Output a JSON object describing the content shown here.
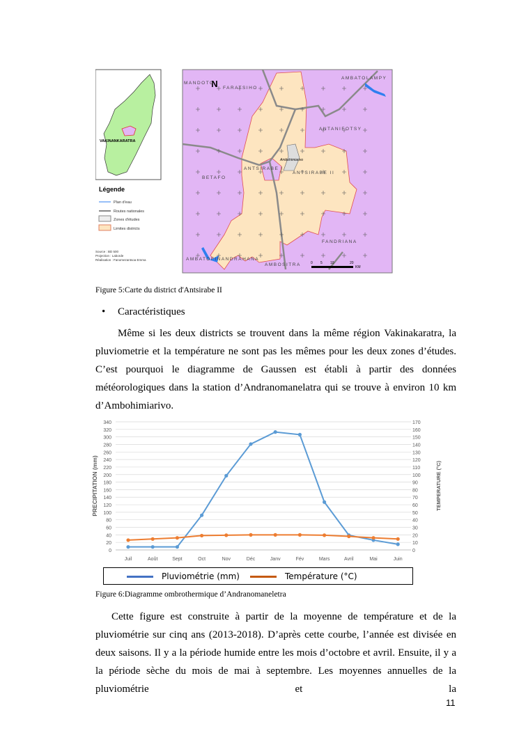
{
  "map": {
    "legend_title": "Légende",
    "legend_items": [
      "Plan d'eau",
      "Routes nationales",
      "Zones d'études",
      "Limites districts"
    ],
    "source_lines": [
      "Source : BD 500",
      "Projection : Laborde",
      "Réalisation : Fanomezantsoa Emma"
    ],
    "region_label": "VAKINANKARATRA",
    "districts": [
      "MANDOTO",
      "FARATSIHO",
      "AMBATOLAMPY",
      "ANTANIFOTSY",
      "BETAFO",
      "ANTSIRABE I",
      "ANTSIRABE II",
      "FANDRIANA",
      "AMBATOFINANDRAHANA",
      "AMBOSITRA"
    ],
    "commune_label": "Ambohimiarivo",
    "north_label": "N",
    "scale_labels": [
      "0",
      "5",
      "10",
      "20",
      "KM"
    ],
    "colors": {
      "outside": "#e2b6f5",
      "district": "#fde5c0",
      "madagascar": "#b8f0a0",
      "road": "#888888",
      "water": "#2f7ff0",
      "border": "#e05050"
    }
  },
  "figure5_caption": "Figure 5:Carte du district d'Antsirabe II",
  "bullet": {
    "symbol": "•",
    "label": "Caractéristiques"
  },
  "paragraph1": "Même si les deux districts se trouvent dans la même région Vakinakaratra, la pluviometrie et la température ne sont pas les mêmes pour les deux zones d’études. C’est pourquoi le diagramme de Gaussen est établi à partir des données météorologiques dans la station d’Andranomanelatra qui se trouve à environ 10 km d’Ambohimiarivo.",
  "chart_data": {
    "type": "line",
    "categories": [
      "Juil",
      "Août",
      "Sept",
      "Oct",
      "Nov",
      "Déc",
      "Janv",
      "Fév",
      "Mars",
      "Avril",
      "Mai",
      "Juin"
    ],
    "series": [
      {
        "name": "Pluviométrie (mm)",
        "axis": "left",
        "color": "#5b9bd5",
        "values": [
          8,
          8,
          8,
          92,
          197,
          281,
          313,
          306,
          127,
          39,
          26,
          15
        ]
      },
      {
        "name": "Température  (°C)",
        "axis": "right",
        "color": "#ed7d31",
        "values": [
          13,
          14.5,
          16,
          19,
          19.5,
          20,
          20,
          20,
          19.5,
          18,
          16,
          14.5
        ]
      }
    ],
    "ylabel": "PRECIPITATION (mm)",
    "y2label": "TEMPERATURE (°C)",
    "ylim": [
      0,
      340
    ],
    "y2lim": [
      0,
      170
    ],
    "yticks": [
      0,
      20,
      40,
      60,
      80,
      100,
      120,
      140,
      160,
      180,
      200,
      220,
      240,
      260,
      280,
      300,
      320,
      340
    ],
    "y2ticks": [
      0,
      10,
      20,
      30,
      40,
      50,
      60,
      70,
      80,
      90,
      100,
      110,
      120,
      130,
      140,
      150,
      160,
      170
    ],
    "grid": true,
    "legend": "bottom"
  },
  "figure6_caption": "Figure 6:Diagramme ombrothermique d’Andranomaneletra",
  "paragraph2": "Cette figure est construite à partir de la moyenne de température et de la pluviométrie sur cinq ans (2013-2018). D’après cette courbe, l’année est divisée en deux saisons. Il y a la période humide entre les mois d’octobre et avril. Ensuite, il y a la période sèche du mois de mai à septembre. Les moyennes annuelles de la pluviométrie et la",
  "page_number": "11"
}
